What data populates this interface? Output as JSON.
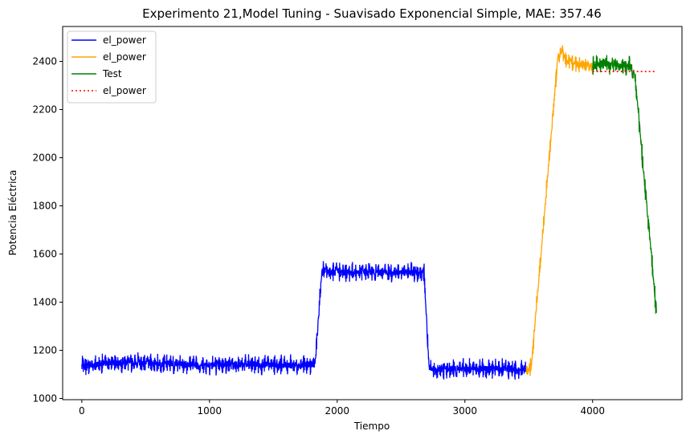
{
  "chart_data": {
    "type": "line",
    "title": "Experimento 21,Model Tuning - Suavisado Exponencial Simple, MAE: 357.46",
    "xlabel": "Tiempo",
    "ylabel": "Potencia Eléctrica",
    "xlim": [
      -150,
      4700
    ],
    "ylim": [
      995,
      2545
    ],
    "xticks": [
      0,
      1000,
      2000,
      3000,
      4000
    ],
    "yticks": [
      1000,
      1200,
      1400,
      1600,
      1800,
      2000,
      2200,
      2400
    ],
    "grid": false,
    "legend_position": "top-left",
    "series": [
      {
        "name": "el_power",
        "color": "#0000ff",
        "style": "solid",
        "noise_amplitude": 45,
        "x": [
          0,
          300,
          1000,
          1800,
          1830,
          1880,
          2000,
          2680,
          2720,
          3000,
          3480
        ],
        "y": [
          1135,
          1150,
          1140,
          1140,
          1160,
          1530,
          1525,
          1525,
          1120,
          1125,
          1120
        ]
      },
      {
        "name": "el_power",
        "color": "#ffa500",
        "style": "solid",
        "noise_amplitude": 40,
        "x": [
          3480,
          3520,
          3730,
          3760,
          3800,
          4000
        ],
        "y": [
          1120,
          1130,
          2430,
          2440,
          2400,
          2380
        ]
      },
      {
        "name": "Test",
        "color": "#008000",
        "style": "solid",
        "noise_amplitude": 45,
        "x": [
          4000,
          4100,
          4200,
          4300,
          4330,
          4500
        ],
        "y": [
          2380,
          2390,
          2385,
          2380,
          2350,
          1360
        ]
      },
      {
        "name": "el_power",
        "color": "#ff0000",
        "style": "dotted",
        "noise_amplitude": 0,
        "x": [
          4000,
          4500
        ],
        "y": [
          2358,
          2358
        ]
      }
    ]
  }
}
